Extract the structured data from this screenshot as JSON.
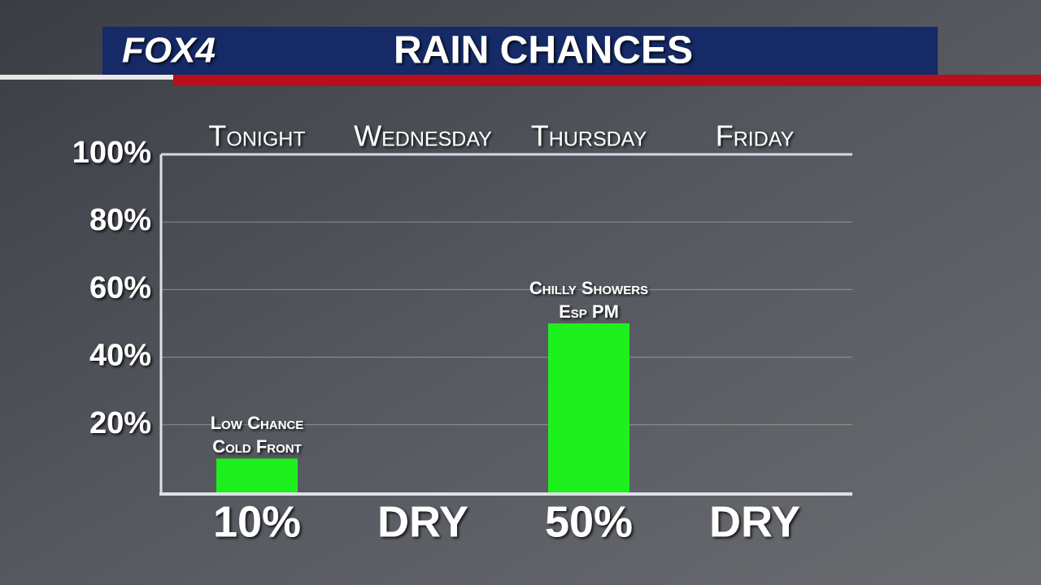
{
  "brand": "FOX4",
  "chart_data": {
    "type": "bar",
    "title": "RAIN CHANCES",
    "categories": [
      "Tonight",
      "Wednesday",
      "Thursday",
      "Friday"
    ],
    "values": [
      10,
      0,
      50,
      0
    ],
    "value_labels": [
      "10%",
      "DRY",
      "50%",
      "DRY"
    ],
    "bar_notes": [
      [
        "Low Chance",
        "Cold Front"
      ],
      null,
      [
        "Chilly Showers",
        "Esp PM"
      ],
      null
    ],
    "color": "#1ef01e",
    "ylim": [
      0,
      100
    ],
    "yticks": [
      {
        "value": 20,
        "label": "20%"
      },
      {
        "value": 40,
        "label": "40%"
      },
      {
        "value": 60,
        "label": "60%"
      },
      {
        "value": 80,
        "label": "80%"
      },
      {
        "value": 100,
        "label": "100%"
      }
    ],
    "grid": true
  }
}
